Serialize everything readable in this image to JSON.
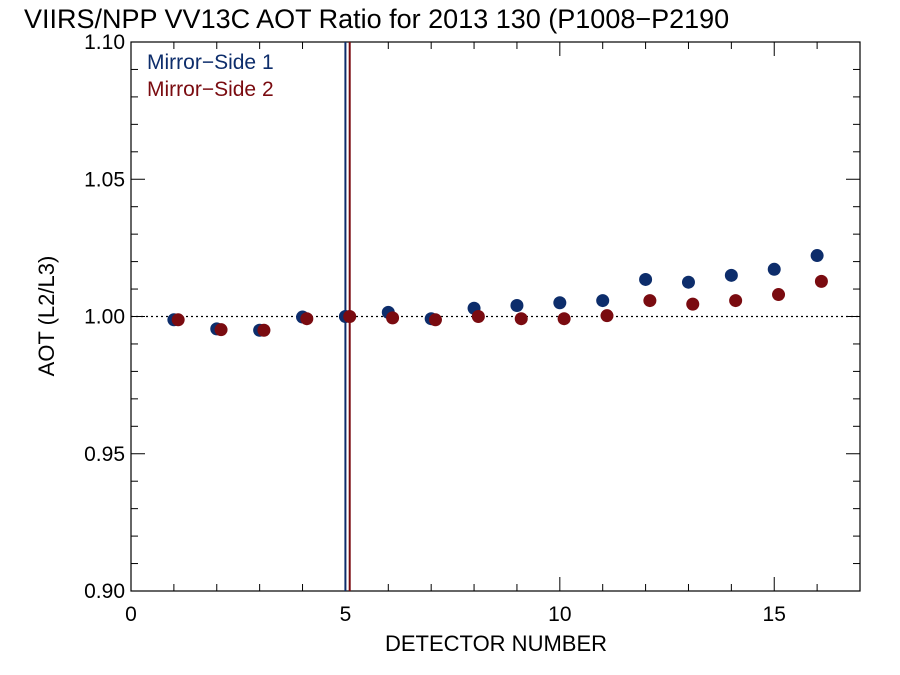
{
  "chart_data": {
    "type": "scatter",
    "title": "VIIRS/NPP VV13C AOT Ratio for 2013 130 (P1008−P2190",
    "xlabel": "DETECTOR NUMBER",
    "ylabel": "AOT (L2/L3)",
    "xlim": [
      0,
      17
    ],
    "ylim": [
      0.9,
      1.1
    ],
    "xticks": [
      0,
      5,
      10,
      15
    ],
    "yticks": [
      0.9,
      0.95,
      1.0,
      1.05,
      1.1
    ],
    "xtick_labels": [
      "0",
      "5",
      "10",
      "15"
    ],
    "ytick_labels": [
      "0.90",
      "0.95",
      "1.00",
      "1.05",
      "1.10"
    ],
    "reference_line_y": 1.0,
    "vertical_lines": [
      {
        "x": 5.0,
        "color": "#0d2d6b"
      },
      {
        "x": 5.1,
        "color": "#7a0b10"
      }
    ],
    "legend_position": "top-left",
    "series": [
      {
        "name": "Mirror−Side 1",
        "color": "#0d2d6b",
        "x": [
          1,
          2,
          3,
          4,
          5,
          6,
          7,
          8,
          9,
          10,
          11,
          12,
          13,
          14,
          15,
          16
        ],
        "y": [
          0.9988,
          0.9955,
          0.995,
          0.9998,
          1.0,
          1.0015,
          0.9992,
          1.003,
          1.004,
          1.005,
          1.0058,
          1.0135,
          1.0125,
          1.015,
          1.0172,
          1.0222
        ]
      },
      {
        "name": "Mirror−Side 2",
        "color": "#7a0b10",
        "x": [
          1.1,
          2.1,
          3.1,
          4.1,
          5.1,
          6.1,
          7.1,
          8.1,
          9.1,
          10.1,
          11.1,
          12.1,
          13.1,
          14.1,
          15.1,
          16.1
        ],
        "y": [
          0.9988,
          0.9952,
          0.995,
          0.9992,
          1.0,
          0.9995,
          0.9988,
          1.0,
          0.9992,
          0.9992,
          1.0003,
          1.0058,
          1.0045,
          1.0058,
          1.008,
          1.0128
        ]
      }
    ]
  }
}
